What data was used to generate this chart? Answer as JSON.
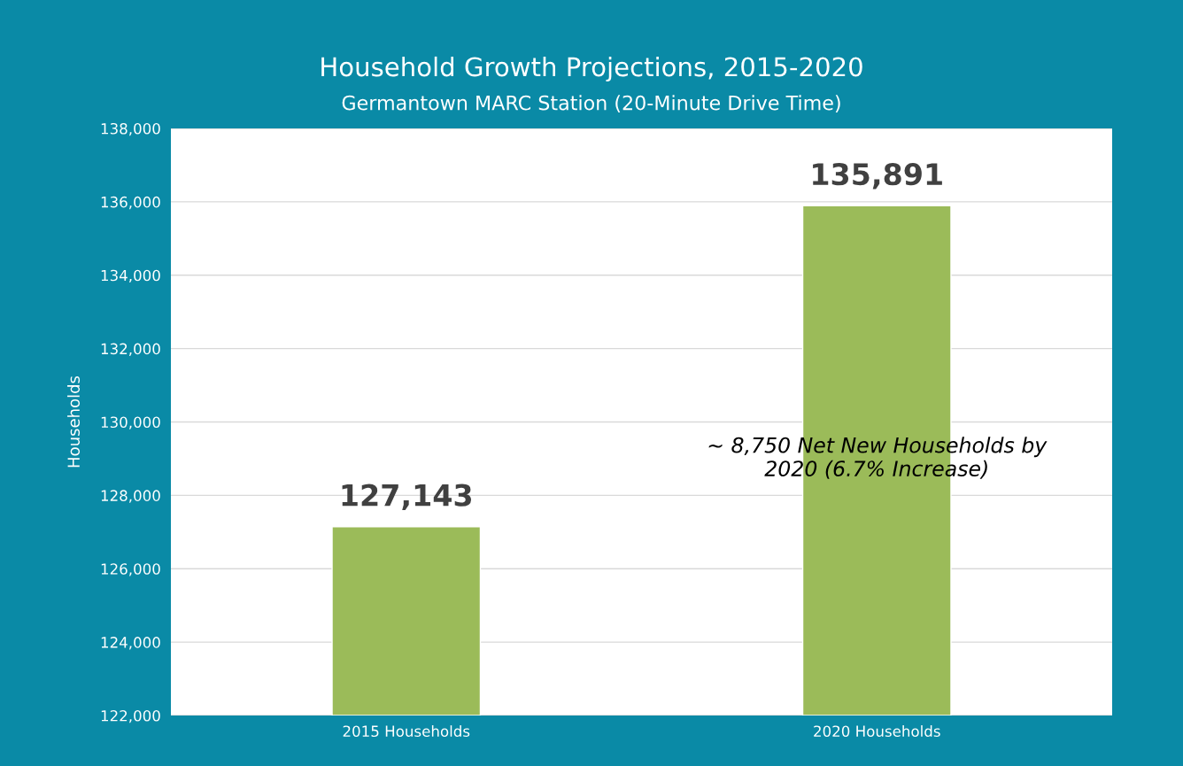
{
  "chart_data": {
    "type": "bar",
    "title": "Household Growth Projections, 2015-2020",
    "subtitle": "Germantown MARC Station (20-Minute Drive Time)",
    "ylabel": "Households",
    "categories": [
      "2015 Households",
      "2020 Households"
    ],
    "values": [
      127143,
      135891
    ],
    "color": "#9bbb59",
    "value_labels": [
      "127,143",
      "135,891"
    ],
    "ylim": [
      122000,
      138000
    ],
    "yticks": [
      {
        "value": 122000,
        "label": "122,000"
      },
      {
        "value": 124000,
        "label": "124,000"
      },
      {
        "value": 126000,
        "label": "126,000"
      },
      {
        "value": 128000,
        "label": "128,000"
      },
      {
        "value": 130000,
        "label": "130,000"
      },
      {
        "value": 132000,
        "label": "132,000"
      },
      {
        "value": 134000,
        "label": "134,000"
      },
      {
        "value": 136000,
        "label": "136,000"
      },
      {
        "value": 138000,
        "label": "138,000"
      }
    ],
    "grid": "y",
    "annotations": [
      "~ 8,750 Net New Households by\n2020 (6.7% Increase)"
    ]
  }
}
